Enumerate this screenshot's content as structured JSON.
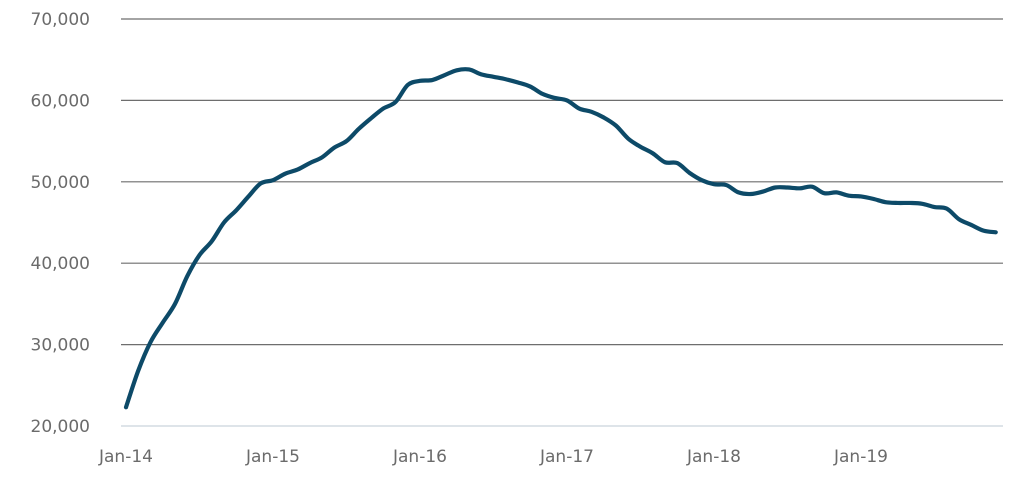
{
  "chart_data": {
    "type": "line",
    "title": "",
    "xlabel": "",
    "ylabel": "",
    "ylim": [
      20000,
      70000
    ],
    "yticks": [
      20000,
      30000,
      40000,
      50000,
      60000,
      70000
    ],
    "ytick_labels": [
      "20,000",
      "30,000",
      "40,000",
      "50,000",
      "60,000",
      "70,000"
    ],
    "xtick_labels": [
      "Jan-14",
      "Jan-15",
      "Jan-16",
      "Jan-17",
      "Jan-18",
      "Jan-19"
    ],
    "grid": true,
    "legend": "none",
    "colors": {
      "line": "#0d4a68"
    },
    "x": [
      "2014-01",
      "2014-02",
      "2014-03",
      "2014-04",
      "2014-05",
      "2014-06",
      "2014-07",
      "2014-08",
      "2014-09",
      "2014-10",
      "2014-11",
      "2014-12",
      "2015-01",
      "2015-02",
      "2015-03",
      "2015-04",
      "2015-05",
      "2015-06",
      "2015-07",
      "2015-08",
      "2015-09",
      "2015-10",
      "2015-11",
      "2015-12",
      "2016-01",
      "2016-02",
      "2016-03",
      "2016-04",
      "2016-05",
      "2016-06",
      "2016-07",
      "2016-08",
      "2016-09",
      "2016-10",
      "2016-11",
      "2016-12",
      "2017-01",
      "2017-02",
      "2017-03",
      "2017-04",
      "2017-05",
      "2017-06",
      "2017-07",
      "2017-08",
      "2017-09",
      "2017-10",
      "2017-11",
      "2017-12",
      "2018-01",
      "2018-02",
      "2018-03",
      "2018-04",
      "2018-05",
      "2018-06",
      "2018-07",
      "2018-08",
      "2018-09",
      "2018-10",
      "2018-11",
      "2018-12",
      "2019-01",
      "2019-02",
      "2019-03",
      "2019-04",
      "2019-05",
      "2019-06",
      "2019-07",
      "2019-08",
      "2019-09",
      "2019-10",
      "2019-11",
      "2019-12"
    ],
    "series": [
      {
        "values": [
          22300,
          26800,
          30300,
          32700,
          35000,
          38400,
          41000,
          42700,
          45000,
          46500,
          48200,
          49800,
          50200,
          51000,
          51500,
          52300,
          53000,
          54200,
          55000,
          56500,
          57800,
          59000,
          59800,
          61900,
          62400,
          62500,
          63100,
          63700,
          63800,
          63200,
          62900,
          62600,
          62200,
          61700,
          60800,
          60300,
          60000,
          59000,
          58600,
          57900,
          56900,
          55300,
          54300,
          53500,
          52400,
          52300,
          51100,
          50200,
          49700,
          49600,
          48700,
          48500,
          48800,
          49300,
          49300,
          49200,
          49400,
          48600,
          48700,
          48300,
          48200,
          47900,
          47500,
          47400,
          47400,
          47300,
          46900,
          46700,
          45400,
          44700,
          44000,
          43800
        ]
      }
    ]
  }
}
